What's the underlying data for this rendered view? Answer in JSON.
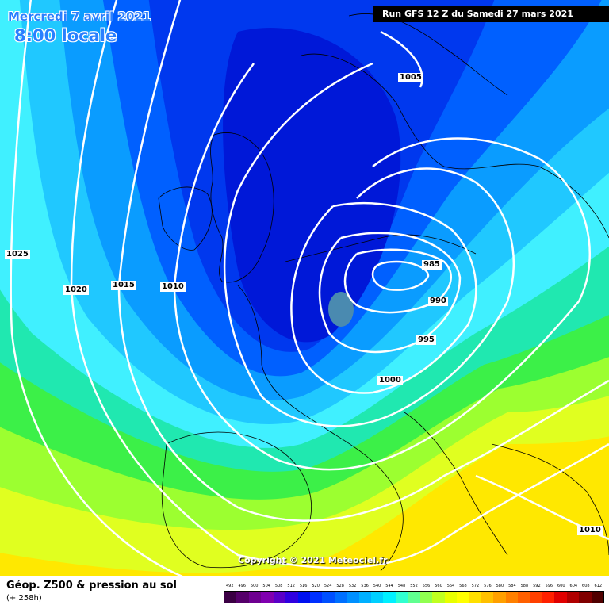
{
  "header": {
    "date_line": "Mercredi 7 avril 2021",
    "time_line": "8:00 locale",
    "run_info": "Run GFS 12 Z du Samedi 27 mars 2021"
  },
  "copyright": "Copyright © 2021 Meteociel.fr",
  "legend": {
    "title": "Géop. Z500 & pression au sol",
    "subtitle": "(+ 258h)",
    "ticks": [
      "492",
      "496",
      "500",
      "504",
      "508",
      "512",
      "516",
      "520",
      "524",
      "528",
      "532",
      "536",
      "540",
      "544",
      "548",
      "552",
      "556",
      "560",
      "564",
      "568",
      "572",
      "576",
      "580",
      "584",
      "588",
      "592",
      "596",
      "600",
      "604",
      "608",
      "612"
    ],
    "colors": [
      "#3b0044",
      "#55006a",
      "#6e0090",
      "#8000b0",
      "#5a00c8",
      "#3000e0",
      "#0010f0",
      "#0030ff",
      "#0050ff",
      "#0070ff",
      "#0090ff",
      "#00b0ff",
      "#00d0ff",
      "#00f0ff",
      "#30ffd0",
      "#60ff90",
      "#90ff50",
      "#c0ff20",
      "#e8ff00",
      "#ffff00",
      "#ffe000",
      "#ffc000",
      "#ffa000",
      "#ff8000",
      "#ff6000",
      "#ff4000",
      "#ff2000",
      "#e00000",
      "#b00000",
      "#800000",
      "#500000"
    ]
  },
  "isobars": [
    {
      "name": "isobar-label-1025",
      "value": "1025"
    },
    {
      "name": "isobar-label-1020",
      "value": "1020"
    },
    {
      "name": "isobar-label-1015",
      "value": "1015"
    },
    {
      "name": "isobar-label-1010-west",
      "value": "1010"
    },
    {
      "name": "isobar-label-1005",
      "value": "1005"
    },
    {
      "name": "isobar-label-1000",
      "value": "1000"
    },
    {
      "name": "isobar-label-995",
      "value": "995"
    },
    {
      "name": "isobar-label-990",
      "value": "990"
    },
    {
      "name": "isobar-label-985",
      "value": "985"
    },
    {
      "name": "isobar-label-1010-east",
      "value": "1010"
    }
  ]
}
